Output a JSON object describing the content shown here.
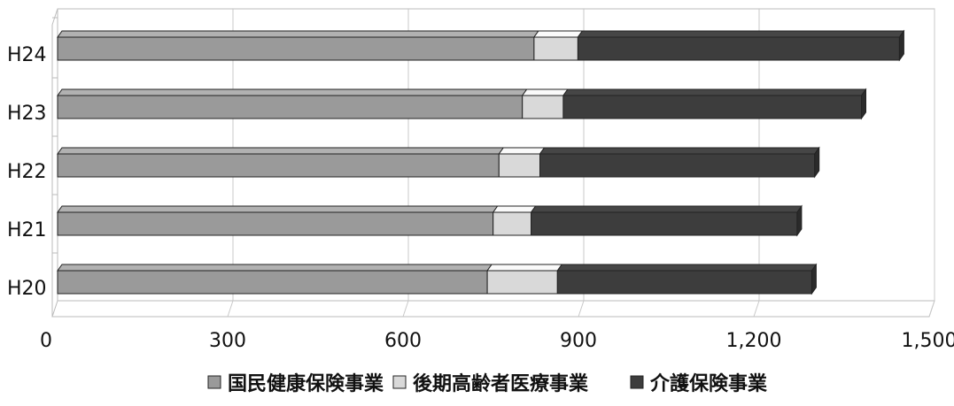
{
  "chart_data": {
    "type": "bar",
    "orientation": "horizontal",
    "stacked": true,
    "style": "3d",
    "categories": [
      "H24",
      "H23",
      "H22",
      "H21",
      "H20"
    ],
    "series": [
      {
        "name": "国民健康保険事業",
        "color": "#9a9a9a",
        "values": [
          815,
          795,
          755,
          745,
          735
        ]
      },
      {
        "name": "後期高齢者医療事業",
        "color": "#d9d9d9",
        "values": [
          75,
          70,
          70,
          65,
          120
        ]
      },
      {
        "name": "介護保険事業",
        "color": "#3d3d3d",
        "values": [
          550,
          510,
          470,
          455,
          435
        ]
      }
    ],
    "xticks": [
      "0",
      "300",
      "600",
      "900",
      "1,200",
      "1,500"
    ],
    "xtick_values": [
      0,
      300,
      600,
      900,
      1200,
      1500
    ],
    "xlim": [
      0,
      1500
    ],
    "grid": true,
    "legend_position": "bottom"
  }
}
